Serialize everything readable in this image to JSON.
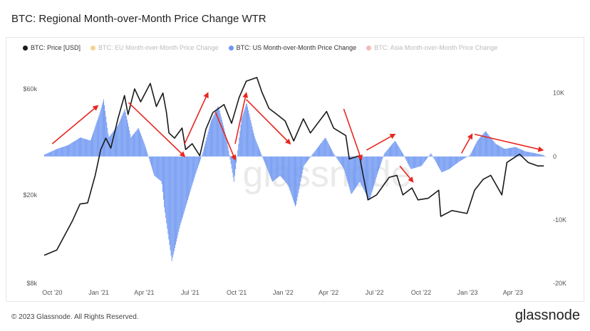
{
  "title": "BTC: Regional Month-over-Month Price Change WTR",
  "footer": {
    "copyright": "© 2023 Glassnode. All Rights Reserved.",
    "brand": "glassnode"
  },
  "watermark": "glassnode",
  "colors": {
    "price": "#1a1a1a",
    "eu": "#f5b64b",
    "us": "#6f97f2",
    "asia": "#f28b8b",
    "arrow": "#e8271f"
  },
  "chart_data": {
    "type": "bar",
    "legend": [
      {
        "name": "BTC: Price [USD]",
        "color": "#1a1a1a",
        "muted": false
      },
      {
        "name": "BTC: EU Month-over-Month Price Change",
        "color": "#f5b64b",
        "muted": true
      },
      {
        "name": "BTC: US Month-over-Month Price Change",
        "color": "#6f97f2",
        "muted": false
      },
      {
        "name": "BTC: Asia Month-over-Month Price Change",
        "color": "#f28b8b",
        "muted": true
      }
    ],
    "legend_position": "top-left",
    "x_range": [
      "2020-09-15",
      "2023-06-05"
    ],
    "x_ticks": [
      {
        "date": "2020-10-01",
        "label": "Oct '20"
      },
      {
        "date": "2021-01-01",
        "label": "Jan '21"
      },
      {
        "date": "2021-04-01",
        "label": "Apr '21"
      },
      {
        "date": "2021-07-01",
        "label": "Jul '21"
      },
      {
        "date": "2021-10-01",
        "label": "Oct '21"
      },
      {
        "date": "2022-01-01",
        "label": "Jan '22"
      },
      {
        "date": "2022-04-01",
        "label": "Apr '22"
      },
      {
        "date": "2022-07-01",
        "label": "Jul '22"
      },
      {
        "date": "2022-10-01",
        "label": "Oct '22"
      },
      {
        "date": "2023-01-01",
        "label": "Jan '23"
      },
      {
        "date": "2023-04-01",
        "label": "Apr '23"
      }
    ],
    "y_left": {
      "scale": "log",
      "range": [
        8000,
        70000
      ],
      "ticks": [
        {
          "value": 8000,
          "label": "$8k"
        },
        {
          "value": 20000,
          "label": "$20k"
        },
        {
          "value": 60000,
          "label": "$60k"
        }
      ]
    },
    "y_right": {
      "scale": "linear",
      "range": [
        -20000,
        13000
      ],
      "ticks": [
        {
          "value": 10000,
          "label": "10K"
        },
        {
          "value": 0,
          "label": "0"
        },
        {
          "value": -10000,
          "label": "-10K"
        },
        {
          "value": -20000,
          "label": "-20K"
        }
      ]
    },
    "series": [
      {
        "name": "BTC: Price [USD]",
        "axis": "left",
        "kind": "line",
        "points": [
          [
            "2020-09-15",
            10700
          ],
          [
            "2020-10-10",
            11300
          ],
          [
            "2020-10-25",
            13100
          ],
          [
            "2020-11-10",
            15300
          ],
          [
            "2020-11-25",
            18200
          ],
          [
            "2020-12-10",
            18400
          ],
          [
            "2020-12-25",
            24500
          ],
          [
            "2021-01-05",
            32000
          ],
          [
            "2021-01-15",
            36000
          ],
          [
            "2021-01-25",
            32500
          ],
          [
            "2021-02-08",
            44000
          ],
          [
            "2021-02-21",
            56000
          ],
          [
            "2021-02-28",
            46000
          ],
          [
            "2021-03-13",
            60000
          ],
          [
            "2021-03-25",
            52500
          ],
          [
            "2021-04-13",
            63500
          ],
          [
            "2021-04-25",
            50000
          ],
          [
            "2021-05-08",
            57500
          ],
          [
            "2021-05-15",
            47000
          ],
          [
            "2021-05-20",
            38000
          ],
          [
            "2021-05-31",
            36000
          ],
          [
            "2021-06-15",
            40000
          ],
          [
            "2021-06-22",
            32000
          ],
          [
            "2021-07-05",
            34000
          ],
          [
            "2021-07-20",
            30000
          ],
          [
            "2021-08-01",
            39500
          ],
          [
            "2021-08-15",
            47000
          ],
          [
            "2021-09-06",
            51000
          ],
          [
            "2021-09-21",
            42000
          ],
          [
            "2021-10-06",
            55000
          ],
          [
            "2021-10-20",
            65000
          ],
          [
            "2021-11-10",
            67500
          ],
          [
            "2021-11-20",
            58000
          ],
          [
            "2021-12-04",
            49000
          ],
          [
            "2021-12-20",
            46000
          ],
          [
            "2022-01-05",
            43000
          ],
          [
            "2022-01-22",
            35000
          ],
          [
            "2022-02-10",
            44000
          ],
          [
            "2022-02-24",
            38000
          ],
          [
            "2022-03-28",
            47500
          ],
          [
            "2022-04-11",
            40000
          ],
          [
            "2022-05-05",
            37000
          ],
          [
            "2022-05-12",
            29000
          ],
          [
            "2022-06-01",
            30000
          ],
          [
            "2022-06-18",
            19000
          ],
          [
            "2022-07-05",
            20000
          ],
          [
            "2022-07-30",
            24000
          ],
          [
            "2022-08-14",
            24500
          ],
          [
            "2022-08-26",
            20000
          ],
          [
            "2022-09-13",
            21500
          ],
          [
            "2022-09-25",
            19000
          ],
          [
            "2022-10-15",
            19300
          ],
          [
            "2022-11-05",
            21000
          ],
          [
            "2022-11-09",
            16000
          ],
          [
            "2022-12-01",
            17000
          ],
          [
            "2022-12-31",
            16500
          ],
          [
            "2023-01-15",
            21000
          ],
          [
            "2023-02-01",
            23500
          ],
          [
            "2023-02-16",
            24500
          ],
          [
            "2023-03-10",
            20000
          ],
          [
            "2023-03-20",
            28000
          ],
          [
            "2023-04-14",
            30500
          ],
          [
            "2023-05-01",
            28000
          ],
          [
            "2023-05-20",
            27000
          ],
          [
            "2023-06-01",
            27000
          ]
        ]
      },
      {
        "name": "BTC: US Month-over-Month Price Change",
        "axis": "right",
        "kind": "area",
        "points": [
          [
            "2020-09-15",
            300
          ],
          [
            "2020-10-10",
            1200
          ],
          [
            "2020-11-01",
            1800
          ],
          [
            "2020-11-25",
            3000
          ],
          [
            "2020-12-15",
            2500
          ],
          [
            "2021-01-01",
            6500
          ],
          [
            "2021-01-10",
            9000
          ],
          [
            "2021-01-20",
            3000
          ],
          [
            "2021-02-08",
            5000
          ],
          [
            "2021-02-21",
            7500
          ],
          [
            "2021-03-05",
            3000
          ],
          [
            "2021-03-20",
            4500
          ],
          [
            "2021-04-01",
            2000
          ],
          [
            "2021-04-20",
            -3000
          ],
          [
            "2021-05-05",
            -4000
          ],
          [
            "2021-05-10",
            -8000
          ],
          [
            "2021-05-25",
            -16500
          ],
          [
            "2021-06-10",
            -11000
          ],
          [
            "2021-06-25",
            -7000
          ],
          [
            "2021-07-10",
            -3000
          ],
          [
            "2021-07-25",
            500
          ],
          [
            "2021-08-10",
            5500
          ],
          [
            "2021-08-25",
            8000
          ],
          [
            "2021-09-10",
            3000
          ],
          [
            "2021-09-25",
            -4000
          ],
          [
            "2021-10-10",
            6000
          ],
          [
            "2021-10-20",
            8500
          ],
          [
            "2021-11-05",
            3000
          ],
          [
            "2021-11-25",
            -1000
          ],
          [
            "2021-12-10",
            -4000
          ],
          [
            "2021-12-25",
            -3000
          ],
          [
            "2022-01-10",
            -4500
          ],
          [
            "2022-01-25",
            -8000
          ],
          [
            "2022-02-10",
            -1500
          ],
          [
            "2022-03-01",
            500
          ],
          [
            "2022-03-25",
            3000
          ],
          [
            "2022-04-10",
            500
          ],
          [
            "2022-05-01",
            -2000
          ],
          [
            "2022-05-15",
            -6000
          ],
          [
            "2022-06-01",
            -4000
          ],
          [
            "2022-06-20",
            -7000
          ],
          [
            "2022-07-05",
            -3000
          ],
          [
            "2022-07-20",
            500
          ],
          [
            "2022-08-10",
            2500
          ],
          [
            "2022-08-25",
            500
          ],
          [
            "2022-09-10",
            -2000
          ],
          [
            "2022-10-01",
            -1500
          ],
          [
            "2022-10-20",
            500
          ],
          [
            "2022-11-10",
            -2500
          ],
          [
            "2022-11-25",
            -2000
          ],
          [
            "2022-12-15",
            -800
          ],
          [
            "2023-01-05",
            200
          ],
          [
            "2023-01-20",
            2500
          ],
          [
            "2023-02-05",
            4000
          ],
          [
            "2023-02-25",
            2000
          ],
          [
            "2023-03-15",
            1200
          ],
          [
            "2023-04-05",
            1500
          ],
          [
            "2023-04-25",
            800
          ],
          [
            "2023-05-15",
            500
          ],
          [
            "2023-06-01",
            200
          ]
        ]
      }
    ],
    "annotations": [
      {
        "type": "arrow",
        "from": [
          "2020-10-01",
          2000
        ],
        "to": [
          "2020-12-30",
          8000
        ]
      },
      {
        "type": "arrow",
        "from": [
          "2021-03-01",
          8500
        ],
        "to": [
          "2021-06-20",
          0
        ]
      },
      {
        "type": "arrow",
        "from": [
          "2021-06-20",
          2000
        ],
        "to": [
          "2021-08-05",
          10000
        ]
      },
      {
        "type": "arrow",
        "from": [
          "2021-08-20",
          7000
        ],
        "to": [
          "2021-09-28",
          -500
        ]
      },
      {
        "type": "arrow",
        "from": [
          "2021-09-28",
          2000
        ],
        "to": [
          "2021-10-20",
          10000
        ]
      },
      {
        "type": "arrow",
        "from": [
          "2021-10-20",
          9000
        ],
        "to": [
          "2022-01-15",
          2000
        ]
      },
      {
        "type": "arrow",
        "from": [
          "2022-05-01",
          7500
        ],
        "to": [
          "2022-06-05",
          -500
        ]
      },
      {
        "type": "arrow",
        "from": [
          "2022-06-15",
          1000
        ],
        "to": [
          "2022-08-10",
          3500
        ]
      },
      {
        "type": "arrow",
        "from": [
          "2022-08-20",
          -1500
        ],
        "to": [
          "2022-09-15",
          -4000
        ]
      },
      {
        "type": "arrow",
        "from": [
          "2022-12-20",
          500
        ],
        "to": [
          "2023-01-10",
          3500
        ]
      },
      {
        "type": "arrow",
        "from": [
          "2023-01-15",
          3500
        ],
        "to": [
          "2023-05-30",
          1000
        ]
      }
    ]
  }
}
